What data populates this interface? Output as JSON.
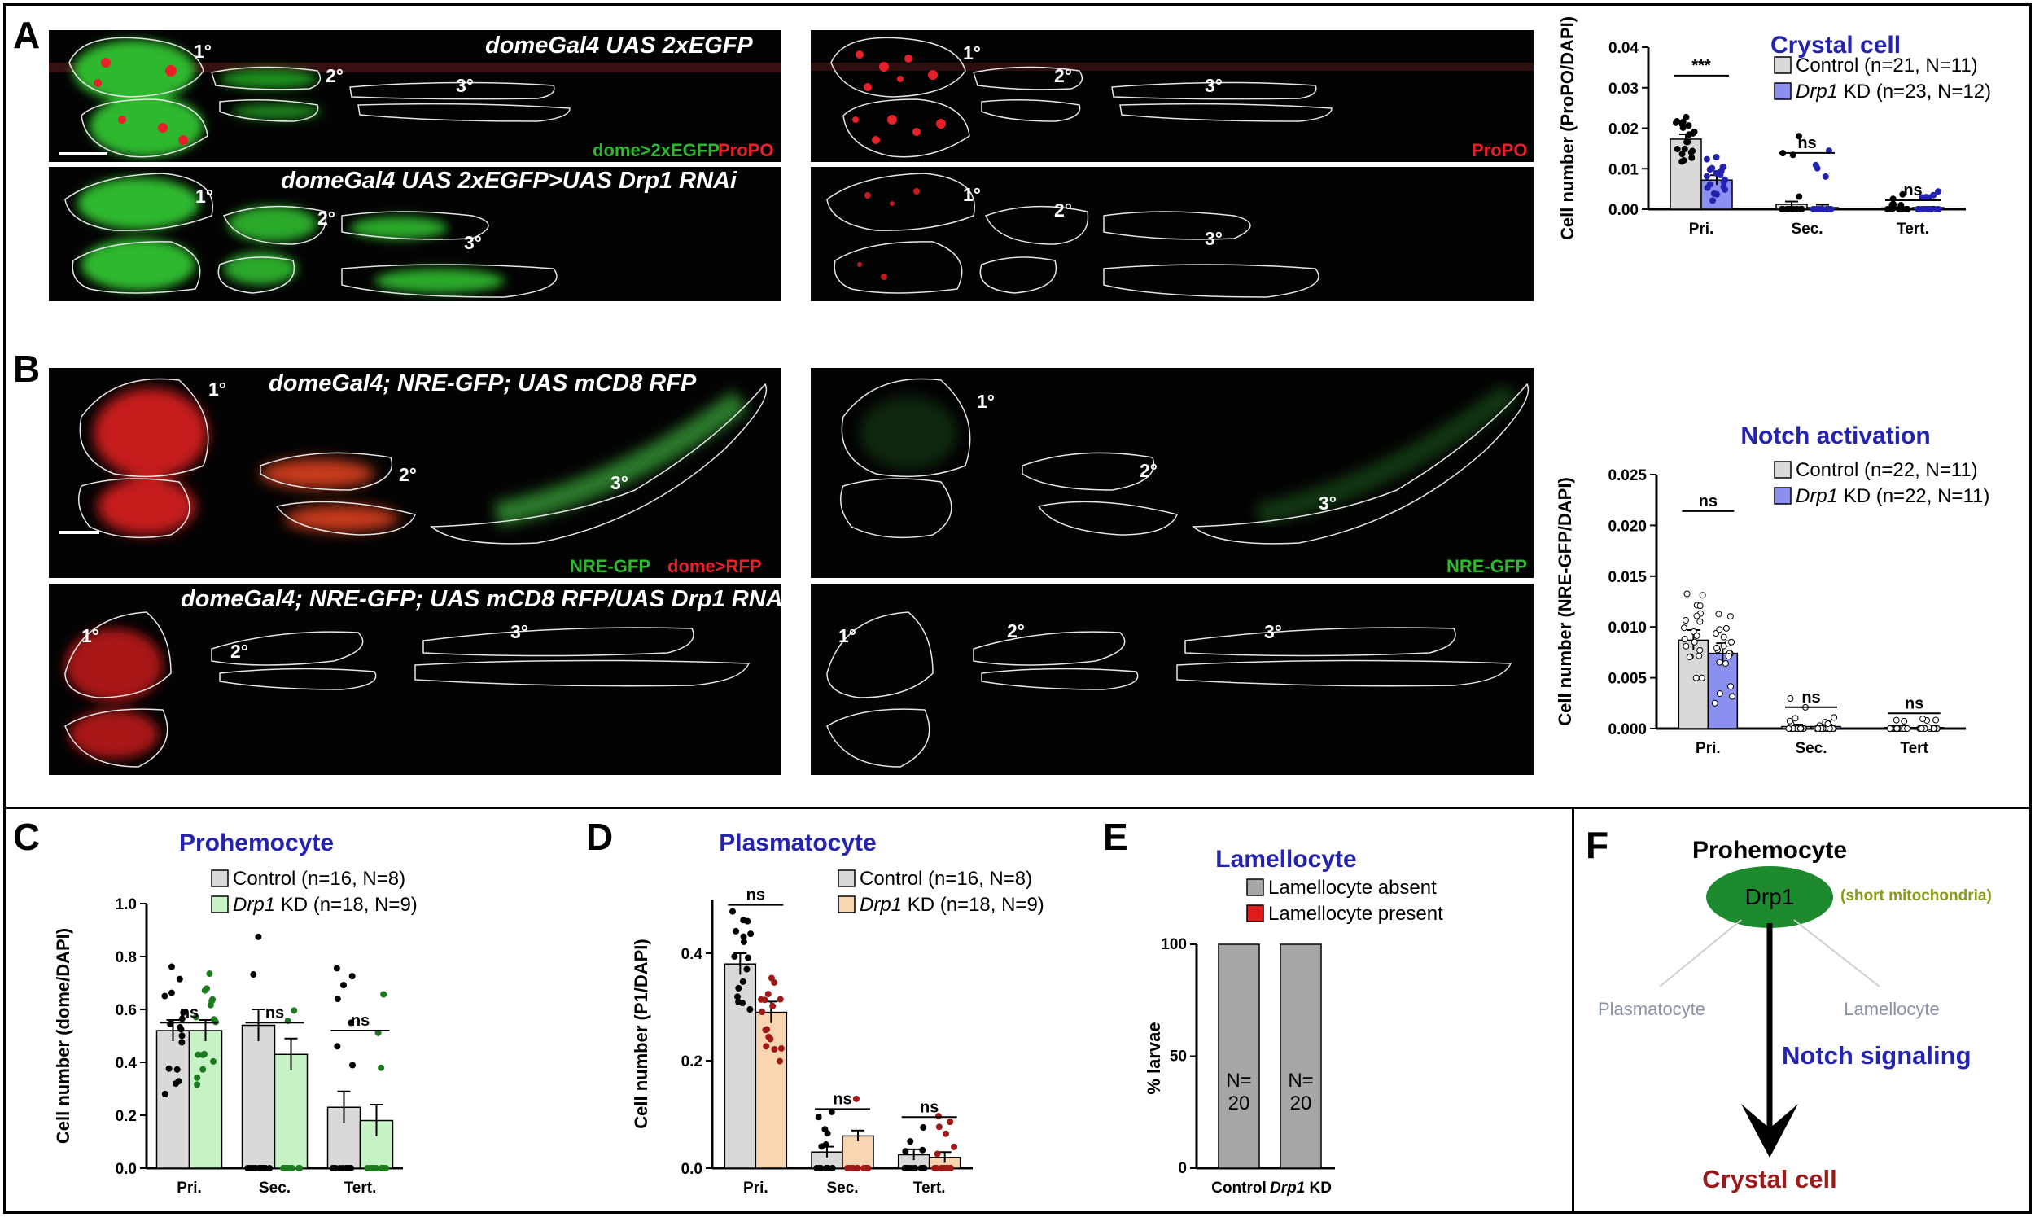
{
  "panel_labels": {
    "A": "A",
    "B": "B",
    "C": "C",
    "D": "D",
    "E": "E",
    "F": "F"
  },
  "panel_a": {
    "geno_control": "domeGal4 UAS 2xEGFP",
    "geno_kd": "domeGal4 UAS 2xEGFP>UAS Drp1 RNAi",
    "zones": {
      "pri": "1°",
      "sec": "2°",
      "tert": "3°"
    },
    "chan_green": "dome>2xEGFP",
    "chan_red": "ProPO",
    "chan_red_only": "ProPO"
  },
  "panel_b": {
    "geno_control": "domeGal4; NRE-GFP; UAS mCD8 RFP",
    "geno_kd": "domeGal4; NRE-GFP; UAS mCD8 RFP/UAS Drp1 RNAi",
    "zones": {
      "pri": "1°",
      "sec": "2°",
      "tert": "3°"
    },
    "chan_green": "NRE-GFP",
    "chan_red": "dome>RFP",
    "chan_green_only": "NRE-GFP"
  },
  "colors": {
    "title_blue": "#2323b0",
    "control_bar": "#d9d9d9",
    "drp1_blue": "#8a8ff0",
    "drp1_green": "#c6f2c6",
    "drp1_orange": "#f7d5b0",
    "lam_absent": "#a6a6a6",
    "lam_present": "#e31a1c",
    "crystal_red": "#9b1b1b",
    "olive": "#8a9a1a",
    "gray_text": "#8892a8"
  },
  "chart_data": [
    {
      "id": "crystal",
      "type": "bar",
      "title": "Crystal cell",
      "ylabel": "Cell number (ProPO/DAPI)",
      "categories": [
        "Pri.",
        "Sec.",
        "Tert."
      ],
      "series": [
        {
          "name": "Control (n=21, N=11)",
          "values": [
            0.0173,
            0.0012,
            0.0003
          ]
        },
        {
          "name": "Drp1 KD (n=23, N=12)",
          "values": [
            0.0072,
            0.0004,
            0.0004
          ]
        }
      ],
      "yticks": [
        "0.00",
        "0.01",
        "0.02",
        "0.03",
        "0.04"
      ],
      "ylim": [
        0,
        0.04
      ],
      "significance": [
        "***",
        "ns",
        "ns"
      ]
    },
    {
      "id": "notch",
      "type": "bar",
      "title": "Notch activation",
      "ylabel": "Cell number (NRE-GFP/DAPI)",
      "categories": [
        "Pri.",
        "Sec.",
        "Tert"
      ],
      "series": [
        {
          "name": "Control (n=22, N=11)",
          "values": [
            0.0087,
            0.0002,
            0.0001
          ]
        },
        {
          "name": "Drp1 KD (n=22, N=11)",
          "values": [
            0.0074,
            0.0002,
            0.0001
          ]
        }
      ],
      "yticks": [
        "0.000",
        "0.005",
        "0.010",
        "0.015",
        "0.020",
        "0.025"
      ],
      "ylim": [
        0,
        0.025
      ],
      "significance": [
        "ns",
        "ns",
        "ns"
      ]
    },
    {
      "id": "prohemocyte",
      "type": "bar",
      "title": "Prohemocyte",
      "ylabel": "Cell number (dome/DAPI)",
      "categories": [
        "Pri.",
        "Sec.",
        "Tert."
      ],
      "series": [
        {
          "name": "Control (n=16, N=8)",
          "values": [
            0.52,
            0.54,
            0.23
          ]
        },
        {
          "name": "Drp1 KD (n=18, N=9)",
          "values": [
            0.52,
            0.43,
            0.18
          ]
        }
      ],
      "yticks": [
        "0.0",
        "0.2",
        "0.4",
        "0.6",
        "0.8",
        "1.0"
      ],
      "ylim": [
        0,
        1.0
      ],
      "significance": [
        "ns",
        "ns",
        "ns"
      ]
    },
    {
      "id": "plasmatocyte",
      "type": "bar",
      "title": "Plasmatocyte",
      "ylabel": "Cell number  (P1/DAPI)",
      "categories": [
        "Pri.",
        "Sec.",
        "Tert."
      ],
      "series": [
        {
          "name": "Control (n=16, N=8)",
          "values": [
            0.38,
            0.03,
            0.025
          ]
        },
        {
          "name": "Drp1 KD (n=18, N=9)",
          "values": [
            0.29,
            0.06,
            0.02
          ]
        }
      ],
      "yticks": [
        "0.0",
        "0.2",
        "0.4"
      ],
      "ylim": [
        0,
        0.5
      ],
      "significance": [
        "ns",
        "ns",
        "ns"
      ]
    },
    {
      "id": "lamellocyte",
      "type": "bar",
      "title": "Lamellocyte",
      "ylabel": "% larvae",
      "categories": [
        "Control",
        "Drp1 KD"
      ],
      "series": [
        {
          "name": "Lamellocyte absent",
          "values": [
            100,
            100
          ]
        },
        {
          "name": "Lamellocyte present",
          "values": [
            0,
            0
          ]
        }
      ],
      "bar_labels": [
        "N=\n20",
        "N=\n20"
      ],
      "yticks": [
        "0",
        "50",
        "100"
      ],
      "ylim": [
        0,
        100
      ]
    }
  ],
  "schematic": {
    "top": "Prohemocyte",
    "node": "Drp1",
    "note": "(short mitochondria)",
    "left": "Plasmatocyte",
    "right": "Lamellocyte",
    "signal": "Notch signaling",
    "bottom": "Crystal cell"
  }
}
